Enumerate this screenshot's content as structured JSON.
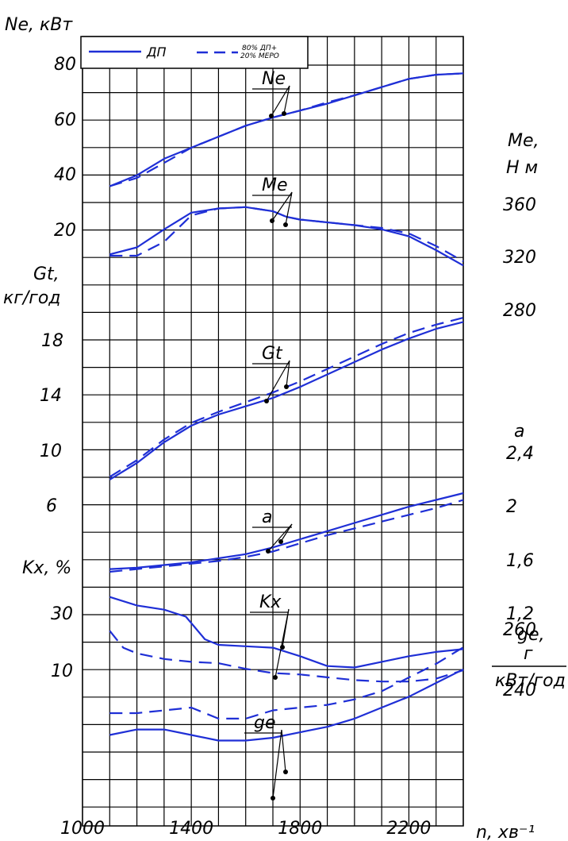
{
  "chart_data": {
    "type": "line",
    "legend": {
      "placement": "top-left",
      "entries": [
        {
          "label": "ДП",
          "style": "solid"
        },
        {
          "label": "80% ДП+ 20% МЕРО",
          "style": "dashed"
        }
      ]
    },
    "colors": {
      "line": "#1f2fd6",
      "grid": "#000000"
    },
    "x": {
      "label": "n, хв⁻¹",
      "range": [
        1000,
        2400
      ],
      "ticks": [
        1000,
        1400,
        1800,
        2200
      ],
      "grid_step": 100
    },
    "axes_left": [
      {
        "id": "Ne",
        "label": "Ne, кВт",
        "ticks": [
          "20",
          "40",
          "60",
          "80"
        ]
      },
      {
        "id": "Gt",
        "label": "Gt, кг/год",
        "ticks": [
          "6",
          "10",
          "14",
          "18"
        ]
      },
      {
        "id": "Kx",
        "label": "Kx, %",
        "ticks": [
          "10",
          "30"
        ]
      }
    ],
    "axes_right": [
      {
        "id": "Me",
        "label": "Me, Н м",
        "ticks": [
          "280",
          "320",
          "360"
        ]
      },
      {
        "id": "a",
        "label": "a",
        "ticks": [
          "1,2",
          "1,6",
          "2",
          "2,4"
        ]
      },
      {
        "id": "ge",
        "label": "ge, г кВт/год",
        "ticks": [
          "240",
          "260"
        ]
      }
    ],
    "series": [
      {
        "quantity": "Ne",
        "label": "Ne",
        "style": "solid",
        "x": [
          1100,
          1200,
          1300,
          1400,
          1500,
          1600,
          1700,
          1800,
          1900,
          2000,
          2100,
          2200,
          2300,
          2400
        ],
        "y": [
          36,
          40,
          46,
          50,
          54,
          58,
          61,
          63.5,
          66,
          69,
          72,
          75,
          76.5,
          77
        ]
      },
      {
        "quantity": "Ne",
        "style": "dashed",
        "x": [
          1100,
          1200,
          1300,
          1400,
          1500,
          1600,
          1700,
          1800,
          1900,
          2000,
          2100,
          2200,
          2300,
          2400
        ],
        "y": [
          36,
          39,
          44.5,
          50,
          54,
          58,
          61,
          63.5,
          66.5,
          69,
          72,
          75,
          76.5,
          77
        ]
      },
      {
        "quantity": "Me",
        "label": "Me",
        "style": "solid",
        "x": [
          1100,
          1200,
          1300,
          1400,
          1500,
          1600,
          1700,
          1750,
          1800,
          1900,
          2000,
          2100,
          2200,
          2300,
          2400
        ],
        "y": [
          321,
          326,
          339,
          351,
          354,
          355,
          352,
          348,
          346,
          344,
          342,
          339,
          334,
          324,
          313
        ]
      },
      {
        "quantity": "Me",
        "style": "dashed",
        "x": [
          1100,
          1200,
          1300,
          1400,
          1500,
          1600,
          1700,
          1750,
          1800,
          1900,
          2000,
          2100,
          2200,
          2300,
          2400
        ],
        "y": [
          320,
          320,
          330,
          349,
          354,
          355,
          352,
          348,
          346,
          344,
          342,
          340,
          336,
          327,
          316
        ]
      },
      {
        "quantity": "Gt",
        "label": "Gt",
        "style": "solid",
        "x": [
          1100,
          1200,
          1300,
          1400,
          1500,
          1600,
          1700,
          1800,
          1900,
          2000,
          2100,
          2200,
          2300,
          2400
        ],
        "y": [
          7.9,
          9.1,
          10.6,
          11.8,
          12.6,
          13.2,
          13.8,
          14.6,
          15.5,
          16.4,
          17.3,
          18.1,
          18.8,
          19.3
        ]
      },
      {
        "quantity": "Gt",
        "style": "dashed",
        "x": [
          1100,
          1200,
          1300,
          1400,
          1500,
          1600,
          1700,
          1800,
          1900,
          2000,
          2100,
          2200,
          2300,
          2400
        ],
        "y": [
          8.1,
          9.3,
          10.8,
          12.0,
          12.8,
          13.5,
          14.2,
          15.0,
          15.9,
          16.8,
          17.7,
          18.5,
          19.1,
          19.6
        ]
      },
      {
        "quantity": "a",
        "label": "a",
        "style": "solid",
        "x": [
          1100,
          1200,
          1300,
          1400,
          1500,
          1600,
          1700,
          1800,
          1900,
          2000,
          2100,
          2200,
          2300,
          2400
        ],
        "y": [
          1.53,
          1.54,
          1.56,
          1.58,
          1.61,
          1.64,
          1.69,
          1.75,
          1.81,
          1.87,
          1.93,
          1.99,
          2.04,
          2.09
        ]
      },
      {
        "quantity": "a",
        "style": "dashed",
        "x": [
          1100,
          1200,
          1300,
          1400,
          1500,
          1600,
          1700,
          1800,
          1900,
          2000,
          2100,
          2200,
          2300,
          2400
        ],
        "y": [
          1.51,
          1.53,
          1.55,
          1.57,
          1.59,
          1.62,
          1.66,
          1.72,
          1.78,
          1.83,
          1.88,
          1.93,
          1.98,
          2.04
        ]
      },
      {
        "quantity": "Kx",
        "label": "Kx",
        "style": "solid",
        "x": [
          1100,
          1200,
          1300,
          1380,
          1450,
          1500,
          1600,
          1700,
          1800,
          1900,
          2000,
          2100,
          2200,
          2300,
          2400
        ],
        "y": [
          36,
          33,
          31.5,
          29,
          21,
          19,
          18.5,
          18,
          15,
          11.5,
          11,
          13,
          15,
          16.5,
          17.5
        ]
      },
      {
        "quantity": "Kx",
        "style": "dashed",
        "x": [
          1100,
          1150,
          1200,
          1300,
          1400,
          1500,
          1600,
          1700,
          1800,
          1900,
          2000,
          2100,
          2200,
          2300,
          2400
        ],
        "y": [
          24,
          18,
          16,
          14,
          13,
          12.5,
          10.5,
          9,
          8.5,
          7.5,
          6.5,
          6,
          6,
          7,
          10
        ]
      },
      {
        "quantity": "ge",
        "label": "ge",
        "style": "solid",
        "x": [
          1100,
          1200,
          1300,
          1400,
          1500,
          1600,
          1700,
          1800,
          1900,
          2000,
          2100,
          2200,
          2300,
          2400
        ],
        "y": [
          221,
          223,
          223,
          221,
          219,
          219,
          220,
          222,
          224,
          227,
          231,
          235,
          240,
          245
        ]
      },
      {
        "quantity": "ge",
        "style": "dashed",
        "x": [
          1100,
          1200,
          1300,
          1400,
          1500,
          1600,
          1700,
          1800,
          1900,
          2000,
          2100,
          2200,
          2300,
          2400
        ],
        "y": [
          229,
          229,
          230,
          231,
          227,
          227,
          230,
          231,
          232,
          234,
          237,
          242,
          247,
          253
        ]
      }
    ]
  }
}
